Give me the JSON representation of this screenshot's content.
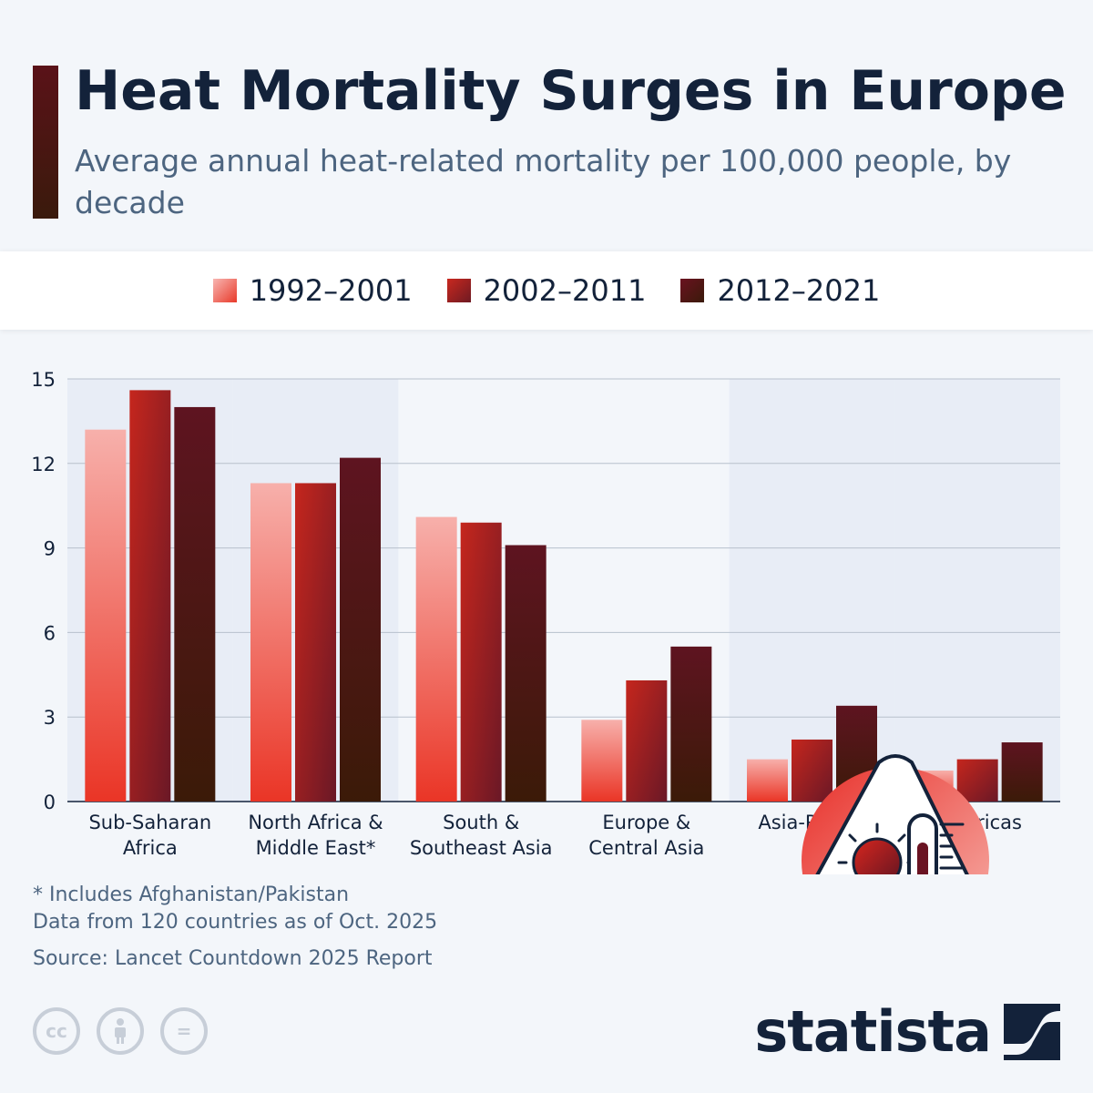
{
  "header": {
    "title": "Heat Mortality Surges in Europe",
    "subtitle": "Average annual heat-related mortality per 100,000 people, by decade"
  },
  "legend": [
    {
      "label": "1992–2001"
    },
    {
      "label": "2002–2011"
    },
    {
      "label": "2012–2021"
    }
  ],
  "chart_data": {
    "type": "bar",
    "title": "Heat Mortality Surges in Europe",
    "subtitle": "Average annual heat-related mortality per 100,000 people, by decade",
    "categories": [
      [
        "Sub-Saharan",
        "Africa"
      ],
      [
        "North Africa &",
        "Middle East*"
      ],
      [
        "South &",
        "Southeast Asia"
      ],
      [
        "Europe &",
        "Central Asia"
      ],
      [
        "Asia-Pacific"
      ],
      [
        "Americas"
      ]
    ],
    "series": [
      {
        "name": "1992–2001",
        "values": [
          13.2,
          11.3,
          10.1,
          2.9,
          1.5,
          1.1
        ]
      },
      {
        "name": "2002–2011",
        "values": [
          14.6,
          11.3,
          9.9,
          4.3,
          2.2,
          1.5
        ]
      },
      {
        "name": "2012–2021",
        "values": [
          14.0,
          12.2,
          9.1,
          5.5,
          3.4,
          2.1
        ]
      }
    ],
    "ylim": [
      0,
      15
    ],
    "yticks": [
      0,
      3,
      6,
      9,
      12,
      15
    ],
    "grid": true,
    "legend_position": "top",
    "shaded_categories": [
      0,
      1,
      4,
      5
    ]
  },
  "footnotes": {
    "note1": "* Includes Afghanistan/Pakistan",
    "note2": "Data from 120 countries as of Oct. 2025",
    "source": "Source: Lancet Countdown 2025 Report"
  },
  "license_icons": [
    "cc-icon",
    "attribution-icon",
    "no-derivatives-icon"
  ],
  "license_labels": {
    "cc": "cc",
    "nd": "="
  },
  "brand": {
    "name": "statista"
  },
  "colors": {
    "accent": "#13223a",
    "series_light": "#f2847f",
    "series_mid": "#a8201c",
    "series_dark": "#3a1a0c"
  }
}
